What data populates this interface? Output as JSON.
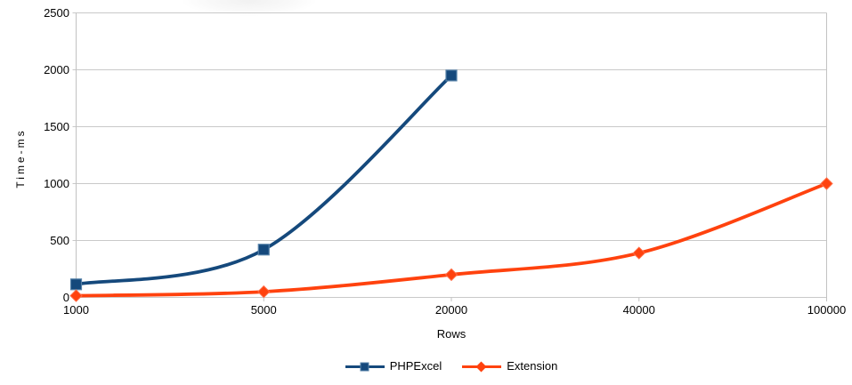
{
  "chart_data": {
    "type": "line",
    "xlabel": "Rows",
    "ylabel": "Time-ms",
    "categories": [
      "1000",
      "5000",
      "20000",
      "40000",
      "100000"
    ],
    "y_ticks": [
      0,
      500,
      1000,
      1500,
      2000,
      2500
    ],
    "ylim": [
      0,
      2500
    ],
    "grid": "horizontal",
    "legend_position": "bottom-center",
    "series": [
      {
        "name": "PHPExcel",
        "color": "#15497C",
        "marker": "square",
        "marker_stroke": "#5581A8",
        "values": [
          115,
          420,
          1950,
          null,
          null
        ]
      },
      {
        "name": "Extension",
        "color": "#FF420E",
        "marker": "diamond",
        "marker_stroke": "#FF6B44",
        "values": [
          15,
          50,
          200,
          390,
          1000
        ]
      }
    ]
  },
  "colors": {
    "grid": "#C9C9C9",
    "axis": "#C2C2C2",
    "text": "#000000",
    "background": "#FFFFFF"
  }
}
